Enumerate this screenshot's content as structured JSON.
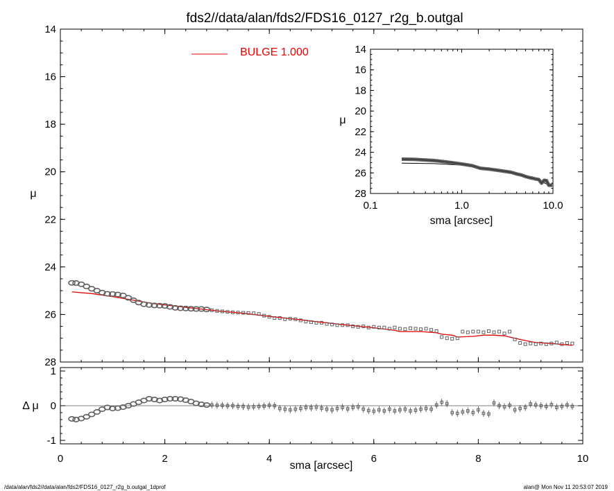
{
  "chart_data": {
    "title": "fds2//data/alan/fds2/FDS16_0127_r2g_b.outgal",
    "footer_left": "/data/alan/fds2//data/alan/fds2/FDS16_0127_r2g_b.outgal_1dprof",
    "footer_right": "alan@  Mon Nov 11 20:53:07 2019",
    "colors": {
      "data": "#606060",
      "model": "#e60000",
      "axis": "#000000"
    },
    "panels": [
      {
        "id": "main",
        "type": "scatter",
        "ylabel": "μ",
        "xlim": [
          0,
          10
        ],
        "ylim": [
          28,
          14
        ],
        "yticks": [
          "14",
          "16",
          "18",
          "20",
          "22",
          "24",
          "26",
          "28"
        ],
        "legend": {
          "label": "BULGE  1.000",
          "placement": "top-center"
        },
        "series": [
          {
            "name": "BULGE  1.000",
            "style": "line",
            "x": [
              0.22,
              0.6,
              1.0,
              1.4,
              1.8,
              2.2,
              2.6,
              3.0,
              3.5,
              4.0,
              4.5,
              5.0,
              5.5,
              6.0,
              6.4,
              6.5,
              6.9,
              7.2,
              7.3,
              7.5,
              7.6,
              7.9,
              8.1,
              8.3,
              8.5,
              8.7,
              8.9,
              9.1,
              9.4,
              9.8
            ],
            "y": [
              25.05,
              25.12,
              25.25,
              25.4,
              25.55,
              25.65,
              25.75,
              25.85,
              25.95,
              26.08,
              26.2,
              26.33,
              26.45,
              26.56,
              26.67,
              26.72,
              26.72,
              26.77,
              26.83,
              26.87,
              26.95,
              26.92,
              26.87,
              26.87,
              26.9,
              27.0,
              27.1,
              27.18,
              27.22,
              27.3
            ]
          },
          {
            "name": "",
            "style": "dense-points",
            "x": [
              0.22,
              0.3,
              0.4,
              0.5,
              0.6,
              0.7,
              0.8,
              0.9,
              1.0,
              1.1,
              1.2,
              1.3,
              1.4,
              1.5,
              1.6,
              1.7,
              1.8,
              1.9,
              2.0,
              2.1,
              2.2,
              2.3,
              2.4,
              2.5,
              2.6,
              2.7,
              2.8
            ],
            "y": [
              24.67,
              24.68,
              24.73,
              24.82,
              24.92,
              25.0,
              25.08,
              25.13,
              25.14,
              25.16,
              25.2,
              25.3,
              25.4,
              25.5,
              25.57,
              25.6,
              25.62,
              25.63,
              25.64,
              25.68,
              25.72,
              25.74,
              25.75,
              25.76,
              25.77,
              25.77,
              25.79
            ]
          },
          {
            "name": "",
            "style": "square-points",
            "x": [
              2.9,
              3.0,
              3.1,
              3.2,
              3.3,
              3.4,
              3.5,
              3.6,
              3.7,
              3.8,
              3.9,
              4.0,
              4.1,
              4.2,
              4.3,
              4.4,
              4.5,
              4.6,
              4.7,
              4.8,
              4.9,
              5.0,
              5.1,
              5.2,
              5.3,
              5.4,
              5.5,
              5.6,
              5.7,
              5.8,
              5.9,
              6.0,
              6.1,
              6.2,
              6.3,
              6.4,
              6.5,
              6.6,
              6.7,
              6.8,
              6.9,
              7.0,
              7.1,
              7.2,
              7.3,
              7.4,
              7.5,
              7.6,
              7.7,
              7.8,
              7.9,
              8.0,
              8.1,
              8.2,
              8.3,
              8.4,
              8.5,
              8.6,
              8.7,
              8.8,
              8.9,
              9.0,
              9.1,
              9.2,
              9.3,
              9.4,
              9.5,
              9.6,
              9.7,
              9.8
            ],
            "y": [
              25.82,
              25.85,
              25.87,
              25.89,
              25.91,
              25.92,
              25.93,
              25.94,
              25.95,
              25.98,
              26.05,
              26.1,
              26.15,
              26.15,
              26.2,
              26.18,
              26.2,
              26.25,
              26.3,
              26.32,
              26.35,
              26.35,
              26.4,
              26.42,
              26.45,
              26.45,
              26.45,
              26.5,
              26.52,
              26.5,
              26.55,
              26.52,
              26.55,
              26.55,
              26.6,
              26.55,
              26.6,
              26.62,
              26.58,
              26.6,
              26.62,
              26.6,
              26.65,
              26.7,
              26.95,
              27.0,
              27.02,
              27.0,
              26.72,
              26.75,
              26.72,
              26.72,
              26.75,
              26.7,
              26.75,
              26.72,
              26.8,
              26.72,
              27.05,
              27.2,
              27.25,
              27.22,
              27.25,
              27.22,
              27.25,
              27.22,
              27.18,
              27.25,
              27.2,
              27.22
            ]
          }
        ]
      },
      {
        "id": "residual",
        "type": "scatter",
        "xlabel": "sma [arcsec]",
        "ylabel": "Δ μ",
        "xlim": [
          0,
          10
        ],
        "ylim": [
          -1.1,
          1.1
        ],
        "xticks": [
          "0",
          "2",
          "4",
          "6",
          "8",
          "10"
        ],
        "yticks": [
          "1",
          "0",
          "-1"
        ],
        "series": [
          {
            "name": "",
            "style": "dense-points",
            "x": [
              0.22,
              0.3,
              0.4,
              0.5,
              0.6,
              0.7,
              0.8,
              0.9,
              1.0,
              1.1,
              1.2,
              1.3,
              1.4,
              1.5,
              1.6,
              1.7,
              1.8,
              1.9,
              2.0,
              2.1,
              2.2,
              2.3,
              2.4,
              2.5,
              2.6,
              2.7,
              2.8
            ],
            "y": [
              -0.38,
              -0.4,
              -0.37,
              -0.32,
              -0.25,
              -0.18,
              -0.1,
              -0.05,
              -0.08,
              -0.07,
              -0.04,
              0.0,
              0.05,
              0.1,
              0.15,
              0.2,
              0.18,
              0.15,
              0.18,
              0.2,
              0.2,
              0.19,
              0.16,
              0.12,
              0.07,
              0.04,
              0.02
            ]
          },
          {
            "name": "",
            "style": "errbar-points",
            "x": [
              2.9,
              3.0,
              3.1,
              3.2,
              3.3,
              3.4,
              3.5,
              3.6,
              3.7,
              3.8,
              3.9,
              4.0,
              4.1,
              4.2,
              4.3,
              4.4,
              4.5,
              4.6,
              4.7,
              4.8,
              4.9,
              5.0,
              5.1,
              5.2,
              5.3,
              5.4,
              5.5,
              5.6,
              5.7,
              5.8,
              5.9,
              6.0,
              6.1,
              6.2,
              6.3,
              6.4,
              6.5,
              6.6,
              6.7,
              6.8,
              6.9,
              7.0,
              7.1,
              7.2,
              7.3,
              7.4,
              7.5,
              7.6,
              7.7,
              7.8,
              7.9,
              8.0,
              8.1,
              8.2,
              8.3,
              8.4,
              8.5,
              8.6,
              8.7,
              8.8,
              8.9,
              9.0,
              9.1,
              9.2,
              9.3,
              9.4,
              9.5,
              9.6,
              9.7,
              9.8
            ],
            "y": [
              0.02,
              0.01,
              0.01,
              0.0,
              0.0,
              -0.02,
              -0.02,
              -0.04,
              -0.03,
              -0.02,
              -0.01,
              0.01,
              0.0,
              -0.08,
              -0.1,
              -0.12,
              -0.1,
              -0.08,
              -0.05,
              -0.06,
              -0.04,
              -0.07,
              -0.1,
              -0.12,
              -0.08,
              -0.05,
              -0.09,
              -0.05,
              -0.03,
              -0.1,
              -0.14,
              -0.16,
              -0.12,
              -0.15,
              -0.1,
              -0.15,
              -0.12,
              -0.1,
              -0.15,
              -0.13,
              -0.1,
              -0.08,
              -0.1,
              0.02,
              0.1,
              0.06,
              -0.2,
              -0.22,
              -0.18,
              -0.15,
              -0.2,
              -0.12,
              -0.22,
              -0.24,
              0.08,
              0.0,
              -0.03,
              0.01,
              -0.12,
              -0.08,
              -0.05,
              0.05,
              0.02,
              0.0,
              -0.02,
              0.03,
              -0.05,
              -0.02,
              0.02,
              -0.02
            ]
          }
        ]
      },
      {
        "id": "inset",
        "type": "scatter",
        "xlabel": "sma [arcsec]",
        "ylabel": "μ",
        "xscale": "log",
        "xlim": [
          0.1,
          10
        ],
        "ylim": [
          28,
          14
        ],
        "xticks": [
          "0.1",
          "1.0",
          "10.0"
        ],
        "yticks": [
          "14",
          "16",
          "18",
          "20",
          "22",
          "24",
          "26",
          "28"
        ],
        "series": [
          {
            "name": "",
            "style": "line",
            "x": [
              0.22,
              0.5,
              1.0,
              2.0,
              3.0,
              5.0,
              7.0,
              9.8
            ],
            "y": [
              25.05,
              25.1,
              25.25,
              25.65,
              25.9,
              26.35,
              26.75,
              27.3
            ]
          },
          {
            "name": "",
            "style": "thick-points",
            "x": [
              0.22,
              0.3,
              0.5,
              0.7,
              1.0,
              1.3,
              1.6,
              2.0,
              2.5,
              3.0,
              3.5,
              4.0,
              4.5,
              5.0,
              5.5,
              6.0,
              6.5,
              7.0,
              7.5,
              8.0,
              8.5,
              9.0,
              9.5,
              9.8
            ],
            "y": [
              24.67,
              24.68,
              24.8,
              24.95,
              25.14,
              25.3,
              25.55,
              25.64,
              25.75,
              25.85,
              25.95,
              26.1,
              26.2,
              26.35,
              26.45,
              26.52,
              26.6,
              26.65,
              27.0,
              26.72,
              26.75,
              27.2,
              27.2,
              27.22
            ]
          }
        ]
      }
    ]
  }
}
